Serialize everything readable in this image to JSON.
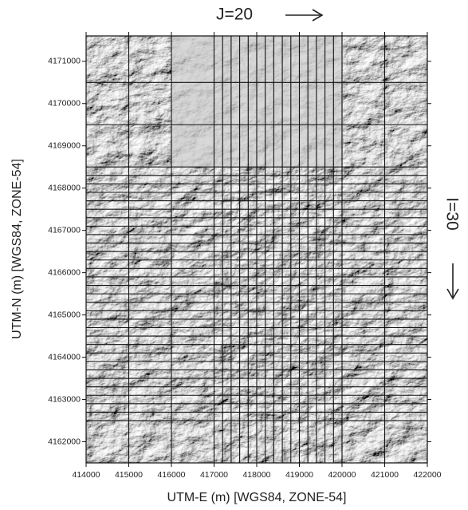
{
  "chart_data": {
    "type": "map",
    "xlabel": "UTM-E (m) [WGS84, ZONE-54]",
    "ylabel": "UTM-N (m) [WGS84, ZONE-54]",
    "annotations": [
      "J=20",
      "I=30"
    ],
    "xlim": [
      414000,
      422000
    ],
    "ylim": [
      4161500,
      4171600
    ],
    "xticks": [
      414000,
      415000,
      416000,
      417000,
      418000,
      419000,
      420000,
      421000,
      422000
    ],
    "yticks": [
      4162000,
      4163000,
      4164000,
      4165000,
      4166000,
      4167000,
      4168000,
      4169000,
      4170000,
      4171000
    ],
    "grid_x": [
      415000,
      416000,
      417000,
      417200,
      417400,
      417600,
      417800,
      418000,
      418200,
      418400,
      418600,
      418800,
      419000,
      419200,
      419400,
      419600,
      419800,
      420000,
      421000
    ],
    "grid_y": [
      4170500,
      4169500,
      4168500,
      4168300,
      4168100,
      4167900,
      4167700,
      4167500,
      4167300,
      4167100,
      4166900,
      4166700,
      4166500,
      4166300,
      4166100,
      4165900,
      4165700,
      4165500,
      4165300,
      4165100,
      4164900,
      4164700,
      4164500,
      4164300,
      4164100,
      4163900,
      4163700,
      4163500,
      4163300,
      4163100,
      4162900,
      4162700,
      4162500
    ],
    "grid_color": "#111111"
  }
}
